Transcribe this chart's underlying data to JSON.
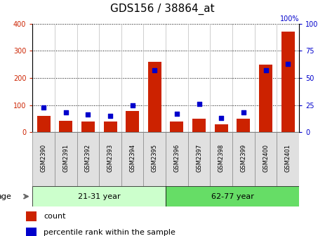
{
  "title": "GDS156 / 38864_at",
  "samples": [
    "GSM2390",
    "GSM2391",
    "GSM2392",
    "GSM2393",
    "GSM2394",
    "GSM2395",
    "GSM2396",
    "GSM2397",
    "GSM2398",
    "GSM2399",
    "GSM2400",
    "GSM2401"
  ],
  "counts": [
    60,
    43,
    38,
    38,
    78,
    260,
    38,
    50,
    30,
    50,
    250,
    370
  ],
  "percentiles": [
    23,
    18,
    16,
    15,
    25,
    57,
    17,
    26,
    13,
    18,
    57,
    63
  ],
  "groups": [
    {
      "label": "21-31 year",
      "start": 0,
      "end": 6,
      "color": "#ccffcc"
    },
    {
      "label": "62-77 year",
      "start": 6,
      "end": 12,
      "color": "#66dd66"
    }
  ],
  "ylim_left": [
    0,
    400
  ],
  "ylim_right": [
    0,
    100
  ],
  "yticks_left": [
    0,
    100,
    200,
    300,
    400
  ],
  "yticks_right": [
    0,
    25,
    50,
    75,
    100
  ],
  "bar_color": "#cc2200",
  "dot_color": "#0000cc",
  "bg_color": "#ffffff",
  "col_sep_color": "#bbbbbb",
  "grid_color": "#000000",
  "title_fontsize": 11,
  "tick_fontsize": 7,
  "label_fontsize": 8,
  "legend_fontsize": 8,
  "bar_width": 0.6
}
